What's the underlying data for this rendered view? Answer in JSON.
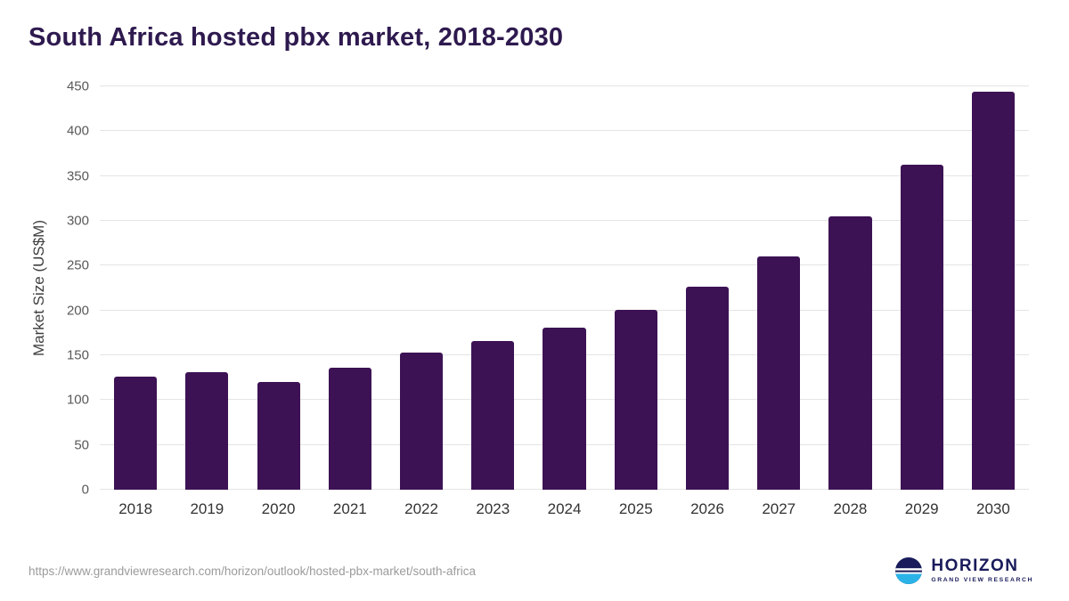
{
  "header": {
    "title": "South Africa hosted pbx market, 2018-2030"
  },
  "chart_data": {
    "type": "bar",
    "title": "South Africa hosted pbx market, 2018-2030",
    "xlabel": "",
    "ylabel": "Market Size (US$M)",
    "categories": [
      "2018",
      "2019",
      "2020",
      "2021",
      "2022",
      "2023",
      "2024",
      "2025",
      "2026",
      "2027",
      "2028",
      "2029",
      "2030"
    ],
    "values": [
      126,
      131,
      120,
      136,
      153,
      166,
      181,
      201,
      227,
      260,
      305,
      363,
      444
    ],
    "ylim": [
      0,
      450
    ],
    "ytick_step": 50,
    "grid": true,
    "legend": "none"
  },
  "colors": {
    "bar": "#3d1254",
    "title": "#2e1a4f",
    "gridline": "#e4e4e4",
    "tick_text": "#595959",
    "axis_label_text": "#3f3f3f",
    "category_text": "#333333",
    "source_text": "#9b9b9b",
    "logo_navy": "#191b5a",
    "logo_blue": "#2bb3e8"
  },
  "footer": {
    "source_url": "https://www.grandviewresearch.com/horizon/outlook/hosted-pbx-market/south-africa",
    "logo": {
      "icon": "horizon-circle-icon",
      "title": "HORIZON",
      "subtitle": "GRAND VIEW RESEARCH"
    }
  }
}
